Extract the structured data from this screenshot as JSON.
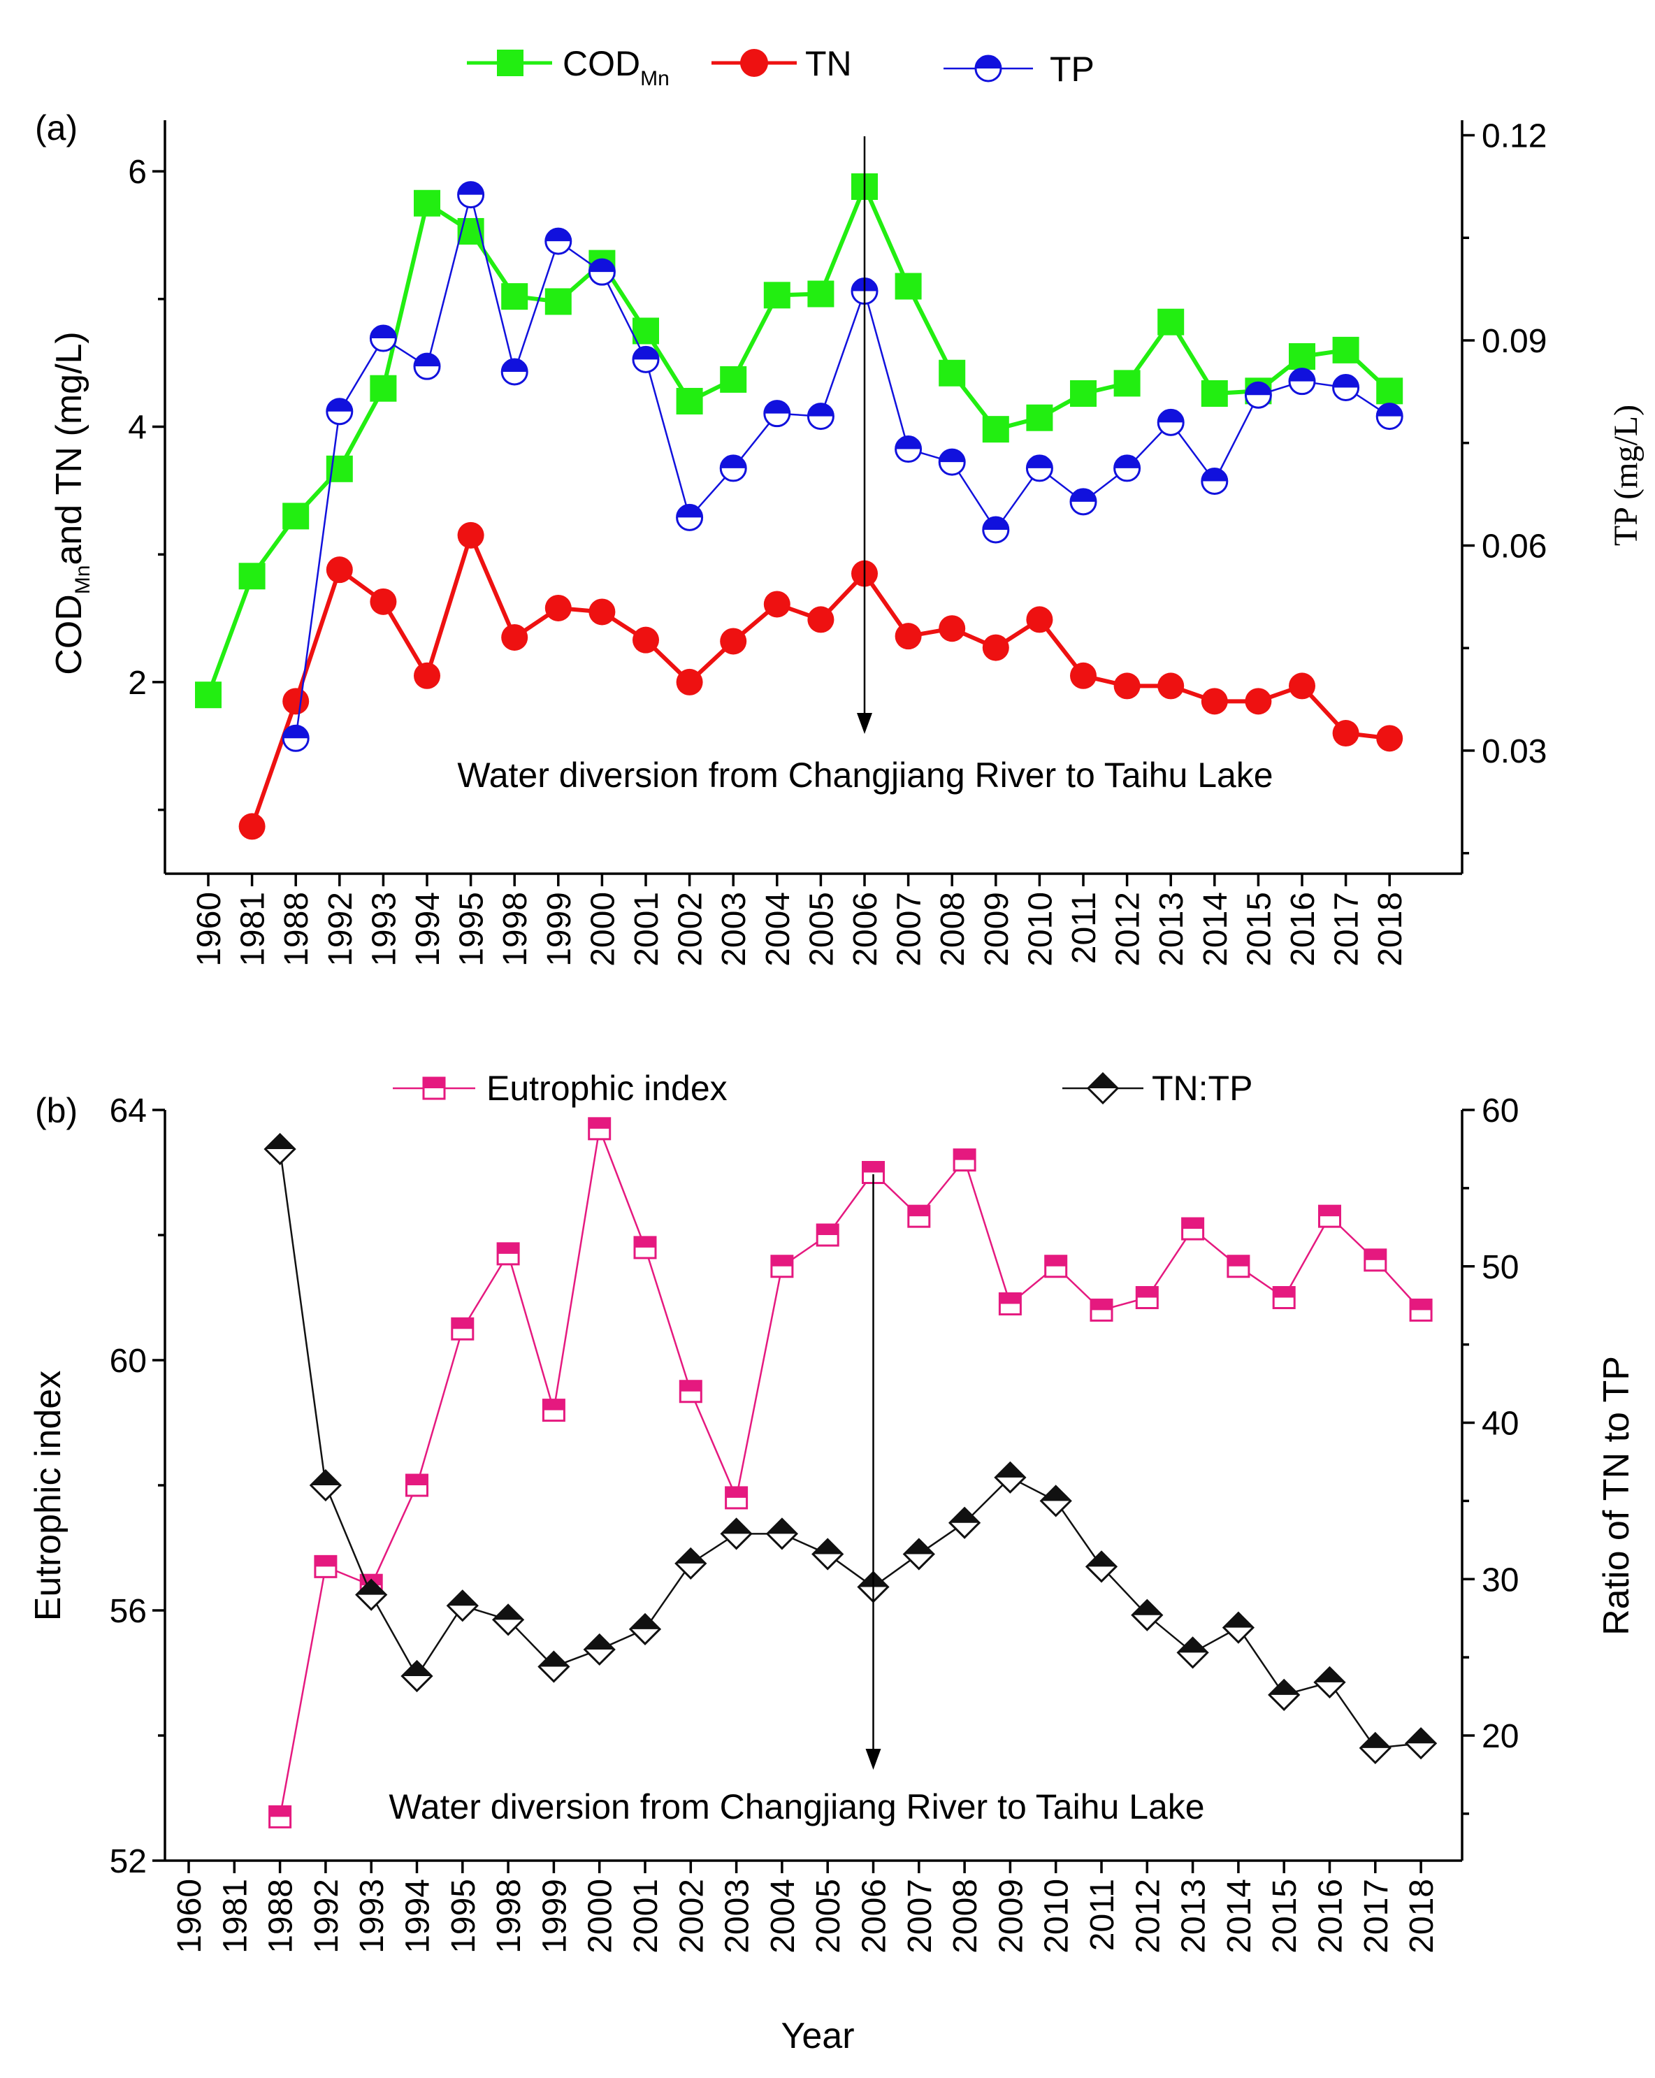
{
  "chart_data": [
    {
      "id": "a",
      "panel_label": "(a)",
      "type": "line",
      "categories": [
        "1960",
        "1981",
        "1988",
        "1992",
        "1993",
        "1994",
        "1995",
        "1998",
        "1999",
        "2000",
        "2001",
        "2002",
        "2003",
        "2004",
        "2005",
        "2006",
        "2007",
        "2008",
        "2009",
        "2010",
        "2011",
        "2012",
        "2013",
        "2014",
        "2015",
        "2016",
        "2017",
        "2018"
      ],
      "left_axis": {
        "title_main": "COD",
        "title_sub": "Mn",
        "title_rest": "and TN (mg/L)",
        "ylim": [
          0.5,
          6.4
        ],
        "ticks": [
          2,
          4,
          6
        ],
        "tick_labels": [
          "2",
          "4",
          "6"
        ]
      },
      "right_axis": {
        "title": "TP (mg/L)",
        "ylim": [
          0.012,
          0.1222
        ],
        "ticks": [
          0.03,
          0.06,
          0.09,
          0.12
        ],
        "tick_labels": [
          "0.03",
          "0.06",
          "0.09",
          "0.12"
        ]
      },
      "series": [
        {
          "name": "COD",
          "name_sub": "Mn",
          "axis": "left",
          "color": "#22ee11",
          "marker": "square",
          "values": [
            1.9,
            2.83,
            3.3,
            3.67,
            4.3,
            5.75,
            5.53,
            5.02,
            4.98,
            5.28,
            4.75,
            4.2,
            4.37,
            5.03,
            5.04,
            5.88,
            5.1,
            4.42,
            3.98,
            4.07,
            4.26,
            4.34,
            4.82,
            4.26,
            4.28,
            4.55,
            4.6,
            4.28
          ]
        },
        {
          "name": "TN",
          "axis": "left",
          "color": "#ee1111",
          "marker": "circle",
          "values": [
            null,
            0.87,
            1.85,
            2.88,
            2.63,
            2.05,
            3.15,
            2.35,
            2.58,
            2.55,
            2.33,
            2.0,
            2.32,
            2.61,
            2.49,
            2.85,
            2.36,
            2.42,
            2.27,
            2.49,
            2.05,
            1.97,
            1.97,
            1.85,
            1.85,
            1.97,
            1.6,
            1.56
          ]
        },
        {
          "name": "TP",
          "axis": "right",
          "color": "#1111dd",
          "marker": "half-circle",
          "values": [
            null,
            null,
            0.0318,
            0.0796,
            0.0903,
            0.0862,
            0.1113,
            0.0854,
            0.1045,
            0.1,
            0.0872,
            0.0641,
            0.0713,
            0.0793,
            0.0789,
            0.0972,
            0.0741,
            0.0722,
            0.0623,
            0.0713,
            0.0664,
            0.0713,
            0.078,
            0.0694,
            0.082,
            0.084,
            0.0831,
            0.0789
          ]
        }
      ],
      "annotation": {
        "text": "Water diversion from Changjiang River to Taihu Lake",
        "year": "2006"
      }
    },
    {
      "id": "b",
      "panel_label": "(b)",
      "type": "line",
      "categories": [
        "1960",
        "1981",
        "1988",
        "1992",
        "1993",
        "1994",
        "1995",
        "1998",
        "1999",
        "2000",
        "2001",
        "2002",
        "2003",
        "2004",
        "2005",
        "2006",
        "2007",
        "2008",
        "2009",
        "2010",
        "2011",
        "2012",
        "2013",
        "2014",
        "2015",
        "2016",
        "2017",
        "2018"
      ],
      "xlabel": "Year",
      "left_axis": {
        "title": "Eutrophic index",
        "ylim": [
          52,
          64
        ],
        "ticks": [
          52,
          56,
          60,
          64
        ],
        "tick_labels": [
          "52",
          "56",
          "60",
          "64"
        ]
      },
      "right_axis": {
        "title": "Ratio of TN to TP",
        "ylim": [
          12,
          60
        ],
        "ticks": [
          20,
          30,
          40,
          50,
          60
        ],
        "tick_labels": [
          "20",
          "30",
          "40",
          "50",
          "60"
        ]
      },
      "series": [
        {
          "name": "Eutrophic index",
          "axis": "left",
          "color": "#e5197f",
          "marker": "half-square",
          "values": [
            null,
            null,
            52.7,
            56.7,
            56.4,
            58.0,
            60.5,
            61.7,
            59.2,
            63.7,
            61.8,
            59.5,
            57.8,
            61.5,
            62.0,
            63.0,
            62.3,
            63.2,
            60.9,
            61.5,
            60.8,
            61.0,
            62.1,
            61.5,
            61.0,
            62.3,
            61.6,
            60.8
          ]
        },
        {
          "name": "TN:TP",
          "axis": "right",
          "color": "#111111",
          "marker": "half-diamond",
          "values": [
            null,
            null,
            57.5,
            36.0,
            29.0,
            23.8,
            28.3,
            27.4,
            24.4,
            25.5,
            26.8,
            31.0,
            32.9,
            32.9,
            31.6,
            29.5,
            31.6,
            33.6,
            36.5,
            35.0,
            30.8,
            27.7,
            25.3,
            26.9,
            22.6,
            23.4,
            19.2,
            19.5
          ]
        }
      ],
      "annotation": {
        "text": "Water diversion from Changjiang River to Taihu Lake",
        "year": "2006"
      }
    }
  ]
}
